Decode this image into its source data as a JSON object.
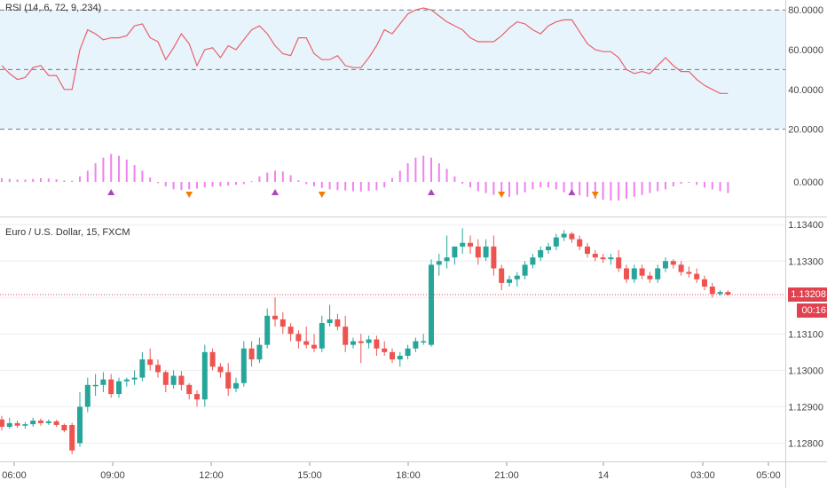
{
  "rsi_pane": {
    "title": "RSI (14, 6, 72, 9, 234)",
    "levels": [
      80,
      50,
      20
    ],
    "band": [
      20,
      80
    ],
    "band_color": "#e8f4fc",
    "line_color": "#e8616c",
    "hist_color": "#ee82ee",
    "up_marker_color": "#ab47bc",
    "down_marker_color": "#f57c00"
  },
  "price_pane": {
    "title": "Euro / U.S. Dollar, 15, FXCM",
    "last_price": "1.13208",
    "countdown": "00:16",
    "up_color": "#26a69a",
    "down_color": "#ef5350",
    "last_line_color": "#e0424f"
  },
  "chart_data": {
    "type": "candlestick",
    "x_ticks": [
      "06:00",
      "09:00",
      "12:00",
      "15:00",
      "18:00",
      "21:00",
      "14",
      "03:00",
      "05:00"
    ],
    "price_axis": {
      "ticks": [
        "1.13400",
        "1.13300",
        "1.13200",
        "1.13100",
        "1.13000",
        "1.12900",
        "1.12800"
      ],
      "ylim": [
        1.1275,
        1.1342
      ]
    },
    "rsi_axis": {
      "ticks": [
        "80.0000",
        "60.0000",
        "40.0000",
        "20.0000"
      ],
      "ylim": [
        10,
        85
      ]
    },
    "osc_axis": {
      "ticks": [
        "0.0000"
      ]
    },
    "rsi": [
      52,
      48,
      45,
      46,
      51,
      52,
      47,
      47,
      40,
      40,
      60,
      70,
      68,
      65,
      66,
      66,
      67,
      72,
      73,
      66,
      64,
      55,
      61,
      68,
      63,
      52,
      60,
      61,
      56,
      62,
      60,
      65,
      70,
      72,
      68,
      62,
      58,
      57,
      66,
      66,
      58,
      55,
      55,
      57,
      52,
      51,
      51,
      56,
      62,
      70,
      68,
      73,
      78,
      80,
      81,
      80,
      77,
      74,
      72,
      70,
      66,
      64,
      64,
      64,
      67,
      71,
      74,
      73,
      70,
      68,
      72,
      74,
      75,
      75,
      69,
      63,
      60,
      59,
      59,
      56,
      50,
      48,
      49,
      48,
      52,
      56,
      52,
      49,
      49,
      45,
      42,
      40,
      38,
      38
    ],
    "osc": [
      1.0,
      0.8,
      0.6,
      0.6,
      0.8,
      1.0,
      0.9,
      0.7,
      0.4,
      0.3,
      1.5,
      3.0,
      5.0,
      6.5,
      7.5,
      7.0,
      6.0,
      4.5,
      3.0,
      1.2,
      -0.3,
      -1.2,
      -2.0,
      -2.2,
      -2.0,
      -1.8,
      -1.5,
      -1.3,
      -1.2,
      -1.0,
      -0.8,
      -0.6,
      0.2,
      1.5,
      2.5,
      3.0,
      2.8,
      1.8,
      0.4,
      -0.6,
      -1.2,
      -1.6,
      -2.0,
      -2.2,
      -2.3,
      -2.5,
      -2.6,
      -2.4,
      -2.2,
      -1.5,
      1.0,
      3.0,
      5.0,
      6.5,
      7.0,
      6.5,
      5.0,
      3.5,
      1.5,
      -0.5,
      -1.5,
      -2.5,
      -3.0,
      -3.5,
      -3.8,
      -4.0,
      -3.5,
      -2.8,
      -2.0,
      -1.5,
      -1.5,
      -2.0,
      -2.8,
      -3.2,
      -3.6,
      -4.0,
      -4.5,
      -4.8,
      -5.0,
      -5.0,
      -4.5,
      -4.0,
      -3.5,
      -3.0,
      -2.5,
      -2.0,
      -1.2,
      -0.5,
      0.0,
      -0.8,
      -1.5,
      -2.0,
      -2.5,
      -3.0
    ],
    "signal_up_bars": [
      14,
      35,
      55,
      73
    ],
    "signal_down_bars": [
      24,
      41,
      64,
      76
    ],
    "candles": [
      [
        1.12865,
        1.12875,
        1.12835,
        1.12845
      ],
      [
        1.12845,
        1.1287,
        1.1284,
        1.12855
      ],
      [
        1.12855,
        1.12862,
        1.12842,
        1.12848
      ],
      [
        1.12848,
        1.12858,
        1.1284,
        1.12852
      ],
      [
        1.12852,
        1.1287,
        1.12845,
        1.12862
      ],
      [
        1.12862,
        1.12868,
        1.12848,
        1.12855
      ],
      [
        1.12855,
        1.12865,
        1.1285,
        1.1286
      ],
      [
        1.1286,
        1.12864,
        1.12845,
        1.1285
      ],
      [
        1.1285,
        1.12854,
        1.1283,
        1.12835
      ],
      [
        1.1285,
        1.12856,
        1.1277,
        1.1278
      ],
      [
        1.128,
        1.1294,
        1.1279,
        1.129
      ],
      [
        1.129,
        1.1298,
        1.12885,
        1.1296
      ],
      [
        1.1296,
        1.1299,
        1.1293,
        1.1296
      ],
      [
        1.1296,
        1.12995,
        1.1294,
        1.12975
      ],
      [
        1.12975,
        1.1299,
        1.12925,
        1.12935
      ],
      [
        1.12935,
        1.1298,
        1.12925,
        1.1297
      ],
      [
        1.1297,
        1.1298,
        1.12955,
        1.12975
      ],
      [
        1.12975,
        1.13,
        1.1296,
        1.1298
      ],
      [
        1.1298,
        1.1305,
        1.1297,
        1.1303
      ],
      [
        1.1303,
        1.1306,
        1.13,
        1.13015
      ],
      [
        1.13015,
        1.1303,
        1.1298,
        1.12995
      ],
      [
        1.12995,
        1.13,
        1.1294,
        1.1296
      ],
      [
        1.1296,
        1.13,
        1.1295,
        1.12985
      ],
      [
        1.12985,
        1.12998,
        1.12945,
        1.1296
      ],
      [
        1.1296,
        1.12965,
        1.1292,
        1.12935
      ],
      [
        1.12935,
        1.12945,
        1.129,
        1.1292
      ],
      [
        1.1292,
        1.1307,
        1.129,
        1.1305
      ],
      [
        1.1305,
        1.1306,
        1.13,
        1.1301
      ],
      [
        1.1301,
        1.1302,
        1.1298,
        1.12995
      ],
      [
        1.12995,
        1.1302,
        1.1293,
        1.1295
      ],
      [
        1.1295,
        1.1298,
        1.1294,
        1.12965
      ],
      [
        1.12965,
        1.1308,
        1.12955,
        1.1306
      ],
      [
        1.1306,
        1.1308,
        1.1301,
        1.1303
      ],
      [
        1.1303,
        1.1309,
        1.1302,
        1.1307
      ],
      [
        1.1307,
        1.1317,
        1.1306,
        1.1315
      ],
      [
        1.1315,
        1.132,
        1.1312,
        1.1314
      ],
      [
        1.1314,
        1.1316,
        1.131,
        1.1312
      ],
      [
        1.1312,
        1.1313,
        1.1308,
        1.131
      ],
      [
        1.131,
        1.1311,
        1.1306,
        1.1308
      ],
      [
        1.1308,
        1.1312,
        1.1306,
        1.1307
      ],
      [
        1.1307,
        1.131,
        1.1305,
        1.1306
      ],
      [
        1.1306,
        1.1315,
        1.1305,
        1.1313
      ],
      [
        1.1313,
        1.1318,
        1.1312,
        1.1314
      ],
      [
        1.1314,
        1.13155,
        1.1311,
        1.1312
      ],
      [
        1.1312,
        1.1315,
        1.1305,
        1.1307
      ],
      [
        1.1307,
        1.1309,
        1.1306,
        1.1308
      ],
      [
        1.1308,
        1.131,
        1.1302,
        1.13075
      ],
      [
        1.13075,
        1.13095,
        1.1306,
        1.13085
      ],
      [
        1.13085,
        1.13095,
        1.1304,
        1.1306
      ],
      [
        1.1306,
        1.1308,
        1.1304,
        1.1305
      ],
      [
        1.1305,
        1.1306,
        1.1302,
        1.1303
      ],
      [
        1.1303,
        1.1305,
        1.1301,
        1.1304
      ],
      [
        1.1304,
        1.1307,
        1.1303,
        1.1306
      ],
      [
        1.1306,
        1.1309,
        1.1305,
        1.1308
      ],
      [
        1.1308,
        1.131,
        1.1307,
        1.1308
      ],
      [
        1.1307,
        1.13305,
        1.13065,
        1.1329
      ],
      [
        1.1329,
        1.1332,
        1.1326,
        1.133
      ],
      [
        1.133,
        1.1337,
        1.1328,
        1.1331
      ],
      [
        1.1331,
        1.1334,
        1.1329,
        1.1334
      ],
      [
        1.1334,
        1.1339,
        1.1332,
        1.1335
      ],
      [
        1.1335,
        1.1337,
        1.1332,
        1.1334
      ],
      [
        1.1334,
        1.1336,
        1.1329,
        1.1331
      ],
      [
        1.1331,
        1.1336,
        1.133,
        1.1334
      ],
      [
        1.1334,
        1.1337,
        1.1326,
        1.1328
      ],
      [
        1.1328,
        1.1329,
        1.1322,
        1.1324
      ],
      [
        1.1324,
        1.1326,
        1.1323,
        1.1325
      ],
      [
        1.1325,
        1.1327,
        1.1323,
        1.1326
      ],
      [
        1.1326,
        1.133,
        1.1325,
        1.1329
      ],
      [
        1.1329,
        1.1332,
        1.1328,
        1.1331
      ],
      [
        1.1331,
        1.1334,
        1.133,
        1.1333
      ],
      [
        1.1333,
        1.1335,
        1.1332,
        1.1334
      ],
      [
        1.1334,
        1.13375,
        1.1333,
        1.13365
      ],
      [
        1.13365,
        1.13385,
        1.13355,
        1.13375
      ],
      [
        1.13375,
        1.1338,
        1.1335,
        1.1336
      ],
      [
        1.1336,
        1.1337,
        1.1333,
        1.1334
      ],
      [
        1.1334,
        1.1335,
        1.1331,
        1.1332
      ],
      [
        1.1332,
        1.1333,
        1.133,
        1.1331
      ],
      [
        1.1331,
        1.1332,
        1.13295,
        1.13305
      ],
      [
        1.13305,
        1.1332,
        1.1329,
        1.1331
      ],
      [
        1.1331,
        1.1333,
        1.1327,
        1.1328
      ],
      [
        1.1328,
        1.1329,
        1.1324,
        1.1325
      ],
      [
        1.1325,
        1.1329,
        1.1324,
        1.1328
      ],
      [
        1.1328,
        1.1329,
        1.1325,
        1.1326
      ],
      [
        1.1326,
        1.1327,
        1.1324,
        1.1325
      ],
      [
        1.1325,
        1.1329,
        1.1324,
        1.1328
      ],
      [
        1.1328,
        1.1331,
        1.1327,
        1.133
      ],
      [
        1.133,
        1.13305,
        1.1328,
        1.1329
      ],
      [
        1.1329,
        1.133,
        1.1326,
        1.1327
      ],
      [
        1.1327,
        1.13285,
        1.13255,
        1.13265
      ],
      [
        1.13265,
        1.1328,
        1.1324,
        1.1325
      ],
      [
        1.1325,
        1.1326,
        1.1322,
        1.1323
      ],
      [
        1.1323,
        1.1324,
        1.132,
        1.1321
      ],
      [
        1.1321,
        1.1322,
        1.13205,
        1.13215
      ],
      [
        1.13215,
        1.1322,
        1.13205,
        1.13208
      ]
    ]
  }
}
